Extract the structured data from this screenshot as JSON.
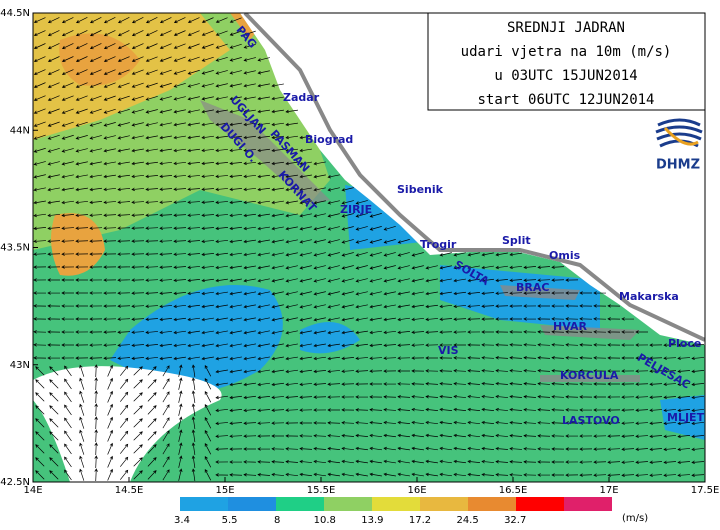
{
  "title": [
    "SREDNJI JADRAN",
    "udari vjetra na 10m (m/s)",
    "u 03UTC 15JUN2014",
    "start 06UTC 12JUN2014"
  ],
  "logo": "DHMZ",
  "lon_ticks": [
    "14E",
    "14.5E",
    "15E",
    "15.5E",
    "16E",
    "16.5E",
    "17E",
    "17.5E"
  ],
  "lat_ticks": [
    "44.5N",
    "44N",
    "43.5N",
    "43N",
    "42.5N"
  ],
  "places": [
    "PAG",
    "Zadar",
    "UGLJAN",
    "PASMAN",
    "Biograd",
    "DUGI O.",
    "KORNAT",
    "Sibenik",
    "ZIRJE",
    "Trogir",
    "Split",
    "Omis",
    "SOLTA",
    "BRAC",
    "Makarska",
    "HVAR",
    "VIS",
    "Ploce",
    "PELJESAC",
    "KORCULA",
    "LASTOVO",
    "MLJET"
  ],
  "legend": {
    "levels": [
      "3.4",
      "5.5",
      "8",
      "10.8",
      "13.9",
      "17.2",
      "24.5",
      "32.7"
    ],
    "unit": "(m/s)"
  }
}
